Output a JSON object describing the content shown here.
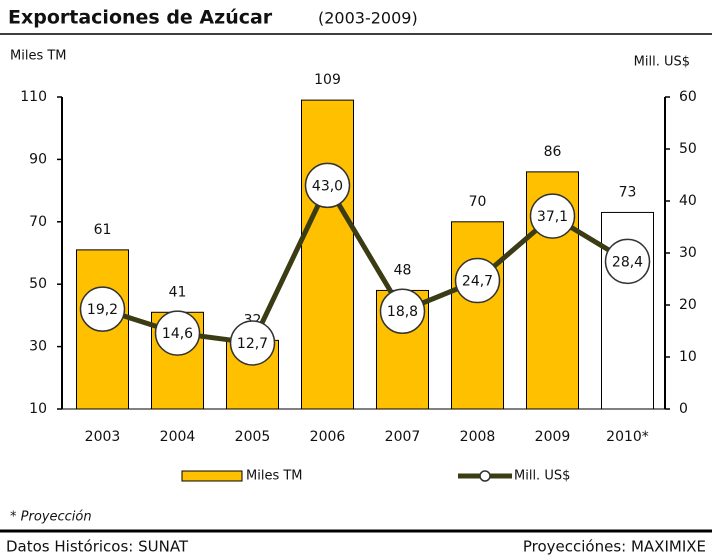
{
  "chart_data": {
    "type": "bar-line",
    "title": "Exportaciones de Azúcar",
    "subtitle": "(2003-2009)",
    "y_label": "Miles TM",
    "y2_label": "Mill. US$",
    "categories": [
      "2003",
      "2004",
      "2005",
      "2006",
      "2007",
      "2008",
      "2009",
      "2010*"
    ],
    "series": [
      {
        "name": "Miles TM",
        "type": "bar",
        "color": "#ffc000",
        "colors": [
          "#ffc000",
          "#ffc000",
          "#ffc000",
          "#ffc000",
          "#ffc000",
          "#ffc000",
          "#ffc000",
          "#ffffff"
        ],
        "values": [
          61,
          41,
          32,
          109,
          48,
          70,
          86,
          73
        ]
      },
      {
        "name": "Mill. US$",
        "type": "line",
        "axis": "y2",
        "color": "#3b3b14",
        "values": [
          19.2,
          14.6,
          12.7,
          43.0,
          18.8,
          24.7,
          37.1,
          28.4
        ],
        "value_labels": [
          "19,2",
          "14,6",
          "12,7",
          "43,0",
          "18,8",
          "24,7",
          "37,1",
          "28,4"
        ]
      }
    ],
    "ylim": [
      10,
      110
    ],
    "yticks": [
      10,
      30,
      50,
      70,
      90,
      110
    ],
    "y2lim": [
      0,
      60
    ],
    "y2ticks": [
      0,
      10,
      20,
      30,
      40,
      50,
      60
    ],
    "legend": "bottom",
    "footnote": "* Proyección",
    "source_left": "Datos Históricos: SUNAT",
    "source_right": "Proyecciónes: MAXIMIXE"
  }
}
